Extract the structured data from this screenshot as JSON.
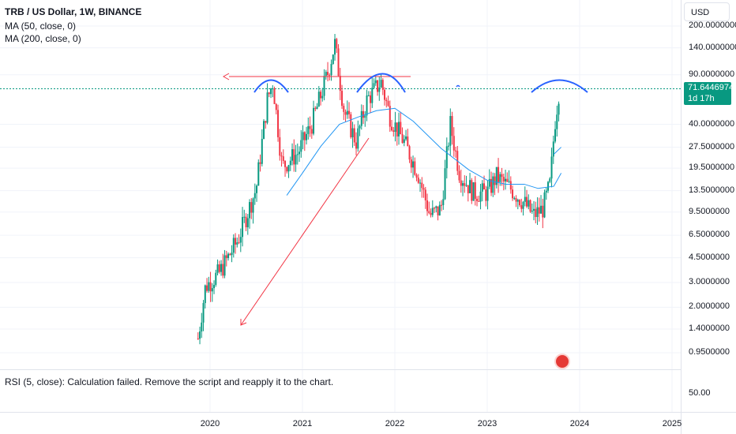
{
  "header": {
    "symbol_title": "TRB / US Dollar, 1W, BINANCE",
    "indicators": [
      "MA (50, close, 0)",
      "MA (200, close, 0)"
    ]
  },
  "currency_button": "USD",
  "price_badge": {
    "price": "71.6446974",
    "countdown": "1d 17h"
  },
  "rsi_pane": {
    "message": "RSI (5, close): Calculation failed. Remove the script and reapply it to the chart.",
    "tick": "50.00"
  },
  "colors": {
    "up": "#089981",
    "down": "#f23645",
    "ma": "#2196f3",
    "arc": "#2962ff",
    "drawing": "#f23645",
    "price_line": "#089981"
  },
  "icons": {
    "events": "flag-icon"
  },
  "chart_data": {
    "type": "candlestick",
    "y_scale": "log",
    "ylim": [
      0.8,
      300
    ],
    "y_ticks": [
      "200.0000000",
      "140.0000000",
      "90.0000000",
      "40.0000000",
      "27.5000000",
      "19.5000000",
      "13.5000000",
      "9.5000000",
      "6.5000000",
      "4.5000000",
      "3.0000000",
      "2.0000000",
      "1.4000000",
      "0.9500000"
    ],
    "x_ticks": [
      "2020",
      "2021",
      "2022",
      "2023",
      "2024",
      "2025"
    ],
    "last_price": 71.6446974,
    "price_path": [
      {
        "x": 2019.87,
        "y": 1.2
      },
      {
        "x": 2019.95,
        "y": 2.8
      },
      {
        "x": 2020.1,
        "y": 3.5
      },
      {
        "x": 2020.3,
        "y": 6.0
      },
      {
        "x": 2020.5,
        "y": 14.0
      },
      {
        "x": 2020.62,
        "y": 60.0
      },
      {
        "x": 2020.68,
        "y": 80.0
      },
      {
        "x": 2020.78,
        "y": 20.0
      },
      {
        "x": 2020.95,
        "y": 25.0
      },
      {
        "x": 2021.1,
        "y": 40.0
      },
      {
        "x": 2021.28,
        "y": 95.0
      },
      {
        "x": 2021.35,
        "y": 150.0
      },
      {
        "x": 2021.45,
        "y": 50.0
      },
      {
        "x": 2021.58,
        "y": 30.0
      },
      {
        "x": 2021.7,
        "y": 60.0
      },
      {
        "x": 2021.85,
        "y": 80.0
      },
      {
        "x": 2021.95,
        "y": 45.0
      },
      {
        "x": 2022.1,
        "y": 30.0
      },
      {
        "x": 2022.25,
        "y": 18.0
      },
      {
        "x": 2022.38,
        "y": 9.0
      },
      {
        "x": 2022.5,
        "y": 10.0
      },
      {
        "x": 2022.6,
        "y": 40.0
      },
      {
        "x": 2022.7,
        "y": 18.0
      },
      {
        "x": 2022.85,
        "y": 13.0
      },
      {
        "x": 2023.0,
        "y": 13.0
      },
      {
        "x": 2023.1,
        "y": 17.0
      },
      {
        "x": 2023.25,
        "y": 14.0
      },
      {
        "x": 2023.4,
        "y": 11.0
      },
      {
        "x": 2023.5,
        "y": 9.0
      },
      {
        "x": 2023.6,
        "y": 10.0
      },
      {
        "x": 2023.68,
        "y": 15.0
      },
      {
        "x": 2023.73,
        "y": 40.0
      },
      {
        "x": 2023.78,
        "y": 71.64
      }
    ],
    "series": [
      {
        "name": "MA (50, close, 0)",
        "points": [
          {
            "x": 2020.83,
            "y": 12.5
          },
          {
            "x": 2021.0,
            "y": 18.0
          },
          {
            "x": 2021.2,
            "y": 28.0
          },
          {
            "x": 2021.4,
            "y": 40.0
          },
          {
            "x": 2021.6,
            "y": 45.0
          },
          {
            "x": 2021.8,
            "y": 50.0
          },
          {
            "x": 2022.0,
            "y": 52.0
          },
          {
            "x": 2022.2,
            "y": 42.0
          },
          {
            "x": 2022.5,
            "y": 27.0
          },
          {
            "x": 2022.8,
            "y": 19.0
          },
          {
            "x": 2023.0,
            "y": 16.0
          },
          {
            "x": 2023.2,
            "y": 15.0
          },
          {
            "x": 2023.4,
            "y": 15.0
          },
          {
            "x": 2023.55,
            "y": 14.0
          },
          {
            "x": 2023.72,
            "y": 14.5
          },
          {
            "x": 2023.8,
            "y": 18.0
          }
        ]
      },
      {
        "name": "MA (200, close, 0)",
        "points": [
          {
            "x": 2023.72,
            "y": 24.5
          },
          {
            "x": 2023.8,
            "y": 27.5
          }
        ]
      }
    ]
  }
}
